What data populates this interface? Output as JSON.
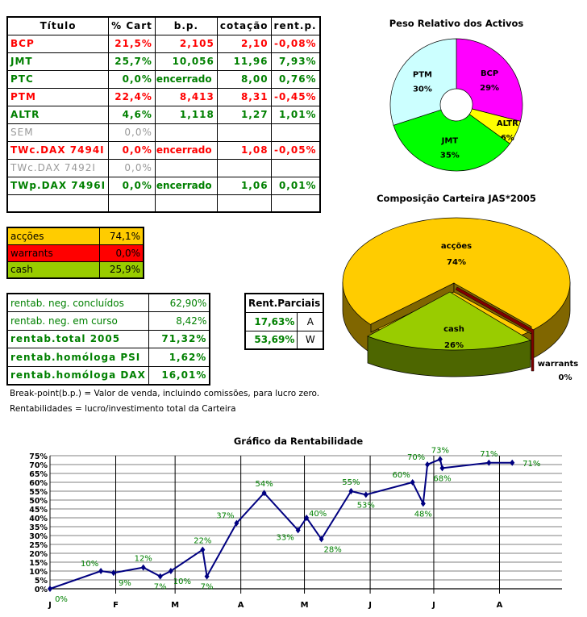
{
  "holdings": {
    "headers": [
      "Título",
      "% Cart",
      "b.p.",
      "cotação",
      "rent.p."
    ],
    "rows": [
      {
        "title": "BCP",
        "cart": "21,5%",
        "bp": "2,105",
        "cot": "2,10",
        "rent": "-0,08%",
        "color": "red"
      },
      {
        "title": "JMT",
        "cart": "25,7%",
        "bp": "10,056",
        "cot": "11,96",
        "rent": "7,93%",
        "color": "green"
      },
      {
        "title": "PTC",
        "cart": "0,0%",
        "bp": "encerrado",
        "cot": "8,00",
        "rent": "0,76%",
        "color": "green"
      },
      {
        "title": "PTM",
        "cart": "22,4%",
        "bp": "8,413",
        "cot": "8,31",
        "rent": "-0,45%",
        "color": "red"
      },
      {
        "title": "ALTR",
        "cart": "4,6%",
        "bp": "1,118",
        "cot": "1,27",
        "rent": "1,01%",
        "color": "green"
      },
      {
        "title": "SEM",
        "cart": "0,0%",
        "bp": "",
        "cot": "",
        "rent": "",
        "color": "gray"
      },
      {
        "title": "TWc.DAX 7494I",
        "cart": "0,0%",
        "bp": "encerrado",
        "cot": "1,08",
        "rent": "-0,05%",
        "color": "red"
      },
      {
        "title": "TWc.DAX 7492I",
        "cart": "0,0%",
        "bp": "",
        "cot": "",
        "rent": "",
        "color": "gray"
      },
      {
        "title": "TWp.DAX 7496I",
        "cart": "0,0%",
        "bp": "encerrado",
        "cot": "1,06",
        "rent": "0,01%",
        "color": "green"
      }
    ]
  },
  "allocation": [
    {
      "label": "acções",
      "value": "74,1%",
      "color": "#ffcc00"
    },
    {
      "label": "warrants",
      "value": "0,0%",
      "color": "#ff0000"
    },
    {
      "label": "cash",
      "value": "25,9%",
      "color": "#99cc00"
    }
  ],
  "returns": [
    {
      "label": "rentab. neg. concluídos",
      "value": "62,90%"
    },
    {
      "label": "rentab. neg. em curso",
      "value": "8,42%"
    },
    {
      "label": "rentab.total 2005",
      "value": "71,32%"
    },
    {
      "label": "rentab.homóloga PSI",
      "value": "1,62%"
    },
    {
      "label": "rentab.homóloga DAX",
      "value": "16,01%"
    }
  ],
  "partial": {
    "header": "Rent.Parciais",
    "rows": [
      {
        "value": "17,63%",
        "tag": "A"
      },
      {
        "value": "53,69%",
        "tag": "W"
      }
    ]
  },
  "notes": [
    "Break-point(b.p.) = Valor de venda, incluindo comissões, para lucro zero.",
    "Rentabilidades = lucro/investimento total da Carteira"
  ],
  "chart_data": [
    {
      "type": "pie",
      "title": "Peso Relativo dos Activos",
      "categories": [
        "BCP",
        "ALTR",
        "JMT",
        "PTM"
      ],
      "values": [
        29,
        6,
        35,
        30
      ],
      "labels": [
        "29%",
        "6%",
        "35%",
        "30%"
      ],
      "colors": [
        "#ff00ff",
        "#ffff00",
        "#00ff00",
        "#ccffff"
      ],
      "donut": true
    },
    {
      "type": "pie",
      "title": "Composição Carteira JAS*2005",
      "categories": [
        "acções",
        "warrants",
        "cash"
      ],
      "values": [
        74,
        0,
        26
      ],
      "labels": [
        "74%",
        "0%",
        "26%"
      ],
      "colors": [
        "#ffcc00",
        "#800000",
        "#99cc00"
      ],
      "style": "3d-exploded"
    },
    {
      "type": "line",
      "title": "Gráfico da Rentabilidade",
      "xlabel": "",
      "ylabel": "",
      "x_ticks": [
        "J",
        "F",
        "M",
        "A",
        "M",
        "J",
        "J",
        "A"
      ],
      "y_ticks": [
        "0%",
        "5%",
        "10%",
        "15%",
        "20%",
        "25%",
        "30%",
        "35%",
        "40%",
        "45%",
        "50%",
        "55%",
        "60%",
        "65%",
        "70%",
        "75%"
      ],
      "ylim": [
        0,
        75
      ],
      "xlim": [
        "2005-01-01",
        "2005-08-31"
      ],
      "grid": true,
      "color": "#000080",
      "label_color": "#008000",
      "points": [
        {
          "x": "2005-01-01",
          "y": 0
        },
        {
          "x": "2005-01-25",
          "y": 10
        },
        {
          "x": "2005-01-31",
          "y": 9
        },
        {
          "x": "2005-02-14",
          "y": 12
        },
        {
          "x": "2005-02-22",
          "y": 7
        },
        {
          "x": "2005-02-27",
          "y": 10
        },
        {
          "x": "2005-03-14",
          "y": 22
        },
        {
          "x": "2005-03-16",
          "y": 7
        },
        {
          "x": "2005-03-30",
          "y": 37
        },
        {
          "x": "2005-04-12",
          "y": 54
        },
        {
          "x": "2005-04-28",
          "y": 33
        },
        {
          "x": "2005-05-02",
          "y": 40
        },
        {
          "x": "2005-05-09",
          "y": 28
        },
        {
          "x": "2005-05-23",
          "y": 55
        },
        {
          "x": "2005-05-30",
          "y": 53
        },
        {
          "x": "2005-06-21",
          "y": 60
        },
        {
          "x": "2005-06-26",
          "y": 48
        },
        {
          "x": "2005-06-28",
          "y": 70
        },
        {
          "x": "2005-07-04",
          "y": 73
        },
        {
          "x": "2005-07-05",
          "y": 68
        },
        {
          "x": "2005-07-27",
          "y": 71
        },
        {
          "x": "2005-08-07",
          "y": 71
        }
      ],
      "labels": [
        "0%",
        "10%",
        "9%",
        "12%",
        "7%",
        "10%",
        "22%",
        "7%",
        "37%",
        "54%",
        "33%",
        "40%",
        "28%",
        "55%",
        "53%",
        "60%",
        "48%",
        "70%",
        "73%",
        "68%",
        "71%",
        "71%"
      ]
    }
  ]
}
